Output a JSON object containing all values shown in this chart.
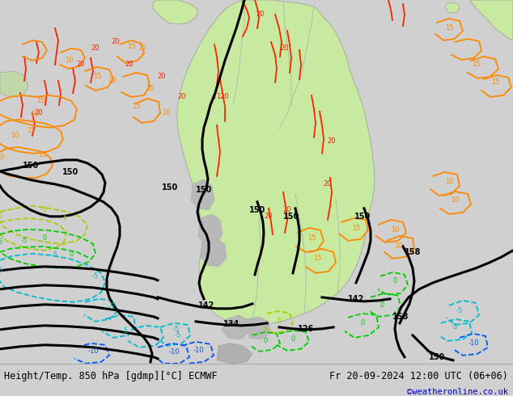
{
  "title_left": "Height/Temp. 850 hPa [gdmp][°C] ECMWF",
  "title_right": "Fr 20-09-2024 12:00 UTC (06+06)",
  "credit": "©weatheronline.co.uk",
  "bg_color": "#d0d0d0",
  "land_sa_color": "#c8eaa0",
  "ocean_color": "#d8d8d8",
  "bottom_bar_color": "#f0f0f0",
  "credit_color": "#0000cc",
  "geo_color": "#000000",
  "geo_lw": 2.2,
  "temp_red": "#ff2200",
  "temp_orange": "#ff8800",
  "temp_yellow_green": "#aacc00",
  "temp_green": "#00cc00",
  "temp_cyan": "#00bbcc",
  "temp_blue": "#0055ff",
  "temp_lw": 1.3
}
